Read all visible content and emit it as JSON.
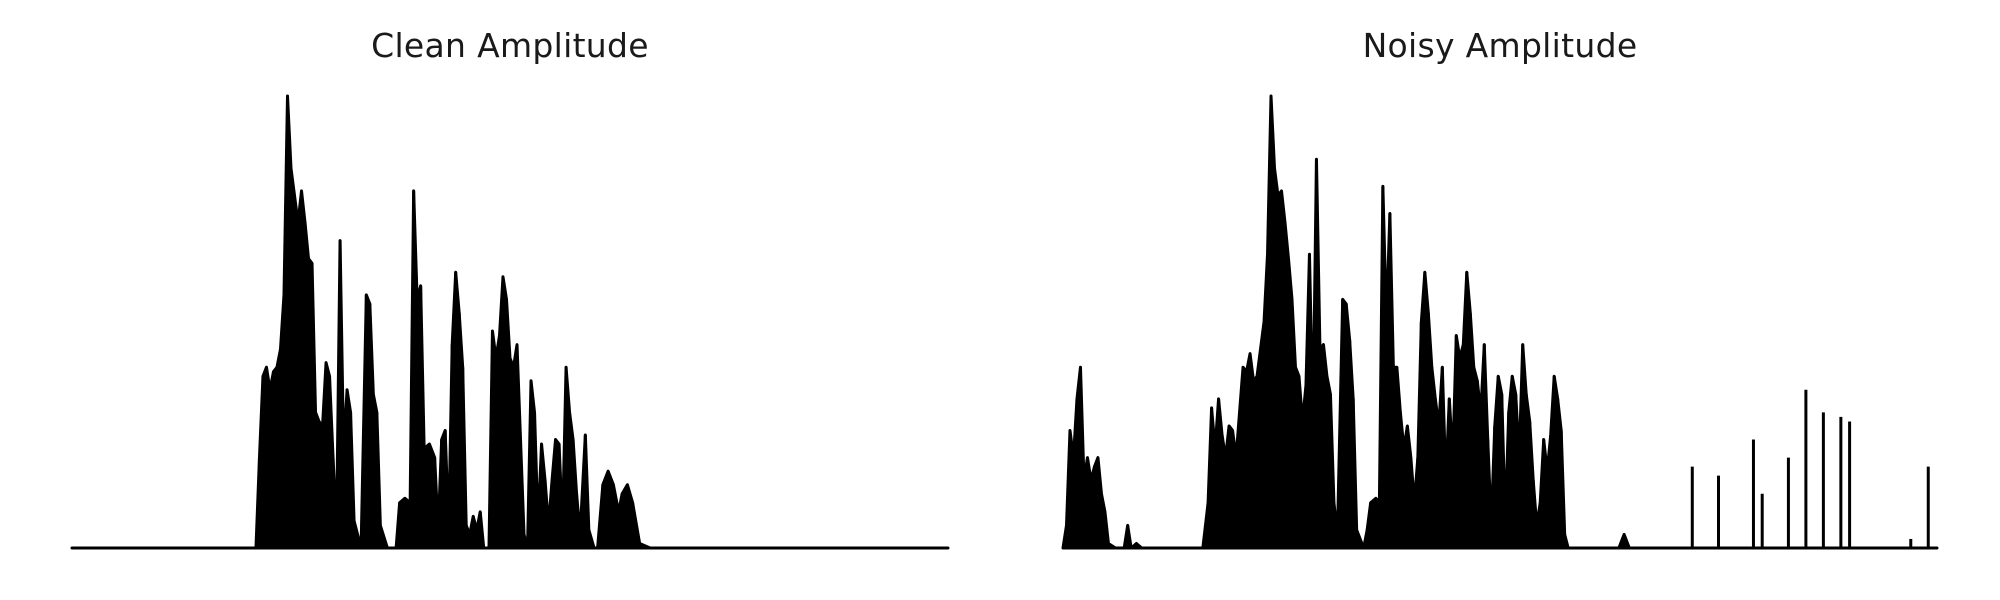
{
  "chart_data": [
    {
      "type": "line",
      "title": "Clean Amplitude",
      "xlabel": "",
      "ylabel": "",
      "axes_visible": false,
      "grid": false,
      "color": "#000000",
      "ylim": [
        0,
        1.0
      ],
      "xlim": [
        0,
        1
      ],
      "envelope": [
        [
          0.0,
          0.0
        ],
        [
          0.21,
          0.0
        ],
        [
          0.214,
          0.2
        ],
        [
          0.218,
          0.38
        ],
        [
          0.222,
          0.4
        ],
        [
          0.226,
          0.35
        ],
        [
          0.23,
          0.39
        ],
        [
          0.234,
          0.4
        ],
        [
          0.238,
          0.44
        ],
        [
          0.242,
          0.56
        ],
        [
          0.246,
          1.0
        ],
        [
          0.25,
          0.84
        ],
        [
          0.254,
          0.78
        ],
        [
          0.258,
          0.72
        ],
        [
          0.262,
          0.79
        ],
        [
          0.266,
          0.72
        ],
        [
          0.27,
          0.64
        ],
        [
          0.274,
          0.63
        ],
        [
          0.278,
          0.3
        ],
        [
          0.282,
          0.28
        ],
        [
          0.286,
          0.27
        ],
        [
          0.29,
          0.41
        ],
        [
          0.294,
          0.38
        ],
        [
          0.298,
          0.2
        ],
        [
          0.302,
          0.04
        ],
        [
          0.306,
          0.68
        ],
        [
          0.31,
          0.22
        ],
        [
          0.314,
          0.35
        ],
        [
          0.318,
          0.3
        ],
        [
          0.322,
          0.06
        ],
        [
          0.33,
          0.0
        ],
        [
          0.336,
          0.56
        ],
        [
          0.34,
          0.54
        ],
        [
          0.344,
          0.34
        ],
        [
          0.348,
          0.3
        ],
        [
          0.352,
          0.05
        ],
        [
          0.36,
          0.0
        ],
        [
          0.37,
          0.0
        ],
        [
          0.374,
          0.1
        ],
        [
          0.38,
          0.11
        ],
        [
          0.386,
          0.1
        ],
        [
          0.39,
          0.79
        ],
        [
          0.394,
          0.55
        ],
        [
          0.398,
          0.58
        ],
        [
          0.402,
          0.22
        ],
        [
          0.408,
          0.23
        ],
        [
          0.414,
          0.2
        ],
        [
          0.418,
          0.04
        ],
        [
          0.422,
          0.24
        ],
        [
          0.426,
          0.26
        ],
        [
          0.43,
          0.04
        ],
        [
          0.434,
          0.45
        ],
        [
          0.438,
          0.61
        ],
        [
          0.442,
          0.52
        ],
        [
          0.446,
          0.4
        ],
        [
          0.45,
          0.05
        ],
        [
          0.454,
          0.03
        ],
        [
          0.458,
          0.07
        ],
        [
          0.462,
          0.04
        ],
        [
          0.466,
          0.08
        ],
        [
          0.47,
          0.0
        ],
        [
          0.476,
          0.0
        ],
        [
          0.48,
          0.48
        ],
        [
          0.484,
          0.42
        ],
        [
          0.488,
          0.47
        ],
        [
          0.492,
          0.6
        ],
        [
          0.496,
          0.55
        ],
        [
          0.5,
          0.42
        ],
        [
          0.504,
          0.4
        ],
        [
          0.508,
          0.45
        ],
        [
          0.512,
          0.24
        ],
        [
          0.516,
          0.03
        ],
        [
          0.52,
          0.0
        ],
        [
          0.524,
          0.37
        ],
        [
          0.528,
          0.3
        ],
        [
          0.532,
          0.05
        ],
        [
          0.536,
          0.23
        ],
        [
          0.54,
          0.15
        ],
        [
          0.544,
          0.05
        ],
        [
          0.548,
          0.15
        ],
        [
          0.552,
          0.24
        ],
        [
          0.556,
          0.23
        ],
        [
          0.56,
          0.05
        ],
        [
          0.564,
          0.4
        ],
        [
          0.568,
          0.3
        ],
        [
          0.572,
          0.24
        ],
        [
          0.576,
          0.12
        ],
        [
          0.58,
          0.03
        ],
        [
          0.586,
          0.25
        ],
        [
          0.59,
          0.04
        ],
        [
          0.596,
          0.0
        ],
        [
          0.6,
          0.0
        ],
        [
          0.606,
          0.14
        ],
        [
          0.612,
          0.17
        ],
        [
          0.618,
          0.14
        ],
        [
          0.624,
          0.08
        ],
        [
          0.628,
          0.12
        ],
        [
          0.634,
          0.14
        ],
        [
          0.64,
          0.1
        ],
        [
          0.648,
          0.01
        ],
        [
          0.66,
          0.0
        ],
        [
          1.0,
          0.0
        ]
      ]
    },
    {
      "type": "line",
      "title": "Noisy Amplitude",
      "xlabel": "",
      "ylabel": "",
      "axes_visible": false,
      "grid": false,
      "color": "#000000",
      "ylim": [
        0,
        1.0
      ],
      "xlim": [
        0,
        1
      ],
      "envelope": [
        [
          0.0,
          0.0
        ],
        [
          0.004,
          0.05
        ],
        [
          0.008,
          0.26
        ],
        [
          0.012,
          0.2
        ],
        [
          0.016,
          0.33
        ],
        [
          0.02,
          0.4
        ],
        [
          0.024,
          0.15
        ],
        [
          0.028,
          0.2
        ],
        [
          0.032,
          0.15
        ],
        [
          0.036,
          0.18
        ],
        [
          0.04,
          0.2
        ],
        [
          0.044,
          0.12
        ],
        [
          0.048,
          0.08
        ],
        [
          0.052,
          0.01
        ],
        [
          0.06,
          0.0
        ],
        [
          0.07,
          0.0
        ],
        [
          0.074,
          0.05
        ],
        [
          0.078,
          0.0
        ],
        [
          0.084,
          0.01
        ],
        [
          0.09,
          0.0
        ],
        [
          0.16,
          0.0
        ],
        [
          0.166,
          0.1
        ],
        [
          0.17,
          0.31
        ],
        [
          0.174,
          0.22
        ],
        [
          0.178,
          0.33
        ],
        [
          0.182,
          0.25
        ],
        [
          0.186,
          0.2
        ],
        [
          0.19,
          0.27
        ],
        [
          0.194,
          0.26
        ],
        [
          0.198,
          0.2
        ],
        [
          0.202,
          0.3
        ],
        [
          0.206,
          0.4
        ],
        [
          0.21,
          0.39
        ],
        [
          0.214,
          0.43
        ],
        [
          0.218,
          0.37
        ],
        [
          0.222,
          0.38
        ],
        [
          0.226,
          0.44
        ],
        [
          0.23,
          0.5
        ],
        [
          0.234,
          0.65
        ],
        [
          0.238,
          1.0
        ],
        [
          0.242,
          0.84
        ],
        [
          0.246,
          0.78
        ],
        [
          0.25,
          0.79
        ],
        [
          0.254,
          0.72
        ],
        [
          0.258,
          0.64
        ],
        [
          0.262,
          0.55
        ],
        [
          0.266,
          0.4
        ],
        [
          0.27,
          0.38
        ],
        [
          0.274,
          0.28
        ],
        [
          0.278,
          0.36
        ],
        [
          0.282,
          0.65
        ],
        [
          0.286,
          0.28
        ],
        [
          0.29,
          0.86
        ],
        [
          0.294,
          0.44
        ],
        [
          0.298,
          0.45
        ],
        [
          0.302,
          0.38
        ],
        [
          0.306,
          0.34
        ],
        [
          0.31,
          0.1
        ],
        [
          0.314,
          0.03
        ],
        [
          0.32,
          0.55
        ],
        [
          0.324,
          0.54
        ],
        [
          0.328,
          0.46
        ],
        [
          0.332,
          0.33
        ],
        [
          0.336,
          0.04
        ],
        [
          0.344,
          0.0
        ],
        [
          0.348,
          0.04
        ],
        [
          0.352,
          0.1
        ],
        [
          0.358,
          0.11
        ],
        [
          0.362,
          0.1
        ],
        [
          0.366,
          0.8
        ],
        [
          0.37,
          0.5
        ],
        [
          0.374,
          0.74
        ],
        [
          0.378,
          0.4
        ],
        [
          0.382,
          0.4
        ],
        [
          0.386,
          0.3
        ],
        [
          0.39,
          0.22
        ],
        [
          0.394,
          0.27
        ],
        [
          0.398,
          0.2
        ],
        [
          0.402,
          0.1
        ],
        [
          0.406,
          0.2
        ],
        [
          0.41,
          0.5
        ],
        [
          0.414,
          0.61
        ],
        [
          0.418,
          0.52
        ],
        [
          0.422,
          0.4
        ],
        [
          0.426,
          0.33
        ],
        [
          0.43,
          0.27
        ],
        [
          0.434,
          0.4
        ],
        [
          0.438,
          0.15
        ],
        [
          0.442,
          0.33
        ],
        [
          0.446,
          0.2
        ],
        [
          0.45,
          0.47
        ],
        [
          0.454,
          0.42
        ],
        [
          0.458,
          0.45
        ],
        [
          0.462,
          0.61
        ],
        [
          0.466,
          0.52
        ],
        [
          0.47,
          0.4
        ],
        [
          0.474,
          0.37
        ],
        [
          0.478,
          0.3
        ],
        [
          0.482,
          0.45
        ],
        [
          0.486,
          0.24
        ],
        [
          0.49,
          0.05
        ],
        [
          0.494,
          0.27
        ],
        [
          0.498,
          0.38
        ],
        [
          0.502,
          0.34
        ],
        [
          0.506,
          0.06
        ],
        [
          0.51,
          0.3
        ],
        [
          0.514,
          0.38
        ],
        [
          0.518,
          0.34
        ],
        [
          0.522,
          0.2
        ],
        [
          0.526,
          0.45
        ],
        [
          0.53,
          0.34
        ],
        [
          0.534,
          0.28
        ],
        [
          0.538,
          0.15
        ],
        [
          0.542,
          0.05
        ],
        [
          0.546,
          0.1
        ],
        [
          0.55,
          0.24
        ],
        [
          0.554,
          0.17
        ],
        [
          0.558,
          0.25
        ],
        [
          0.562,
          0.38
        ],
        [
          0.566,
          0.33
        ],
        [
          0.57,
          0.26
        ],
        [
          0.574,
          0.03
        ],
        [
          0.578,
          0.0
        ],
        [
          0.6,
          0.0
        ],
        [
          0.62,
          0.0
        ],
        [
          0.636,
          0.0
        ],
        [
          0.642,
          0.03
        ],
        [
          0.648,
          0.0
        ],
        [
          0.66,
          0.0
        ],
        [
          0.68,
          0.0
        ],
        [
          0.69,
          0.0
        ],
        [
          0.7,
          0.0
        ],
        [
          0.72,
          0.0
        ],
        [
          0.74,
          0.0
        ],
        [
          0.76,
          0.0
        ],
        [
          0.78,
          0.0
        ],
        [
          0.8,
          0.0
        ],
        [
          0.82,
          0.0
        ],
        [
          0.84,
          0.0
        ],
        [
          0.86,
          0.0
        ],
        [
          0.88,
          0.0
        ],
        [
          0.9,
          0.0
        ],
        [
          0.92,
          0.0
        ],
        [
          0.94,
          0.0
        ],
        [
          0.96,
          0.0
        ],
        [
          0.98,
          0.0
        ],
        [
          1.0,
          0.0
        ]
      ],
      "extra_spikes": [
        [
          0.79,
          0.24
        ],
        [
          0.97,
          0.02
        ],
        [
          0.99,
          0.18
        ],
        [
          0.72,
          0.18
        ],
        [
          0.75,
          0.16
        ],
        [
          0.8,
          0.12
        ],
        [
          0.83,
          0.2
        ],
        [
          0.85,
          0.35
        ],
        [
          0.87,
          0.3
        ],
        [
          0.89,
          0.29
        ],
        [
          0.9,
          0.28
        ]
      ]
    }
  ]
}
